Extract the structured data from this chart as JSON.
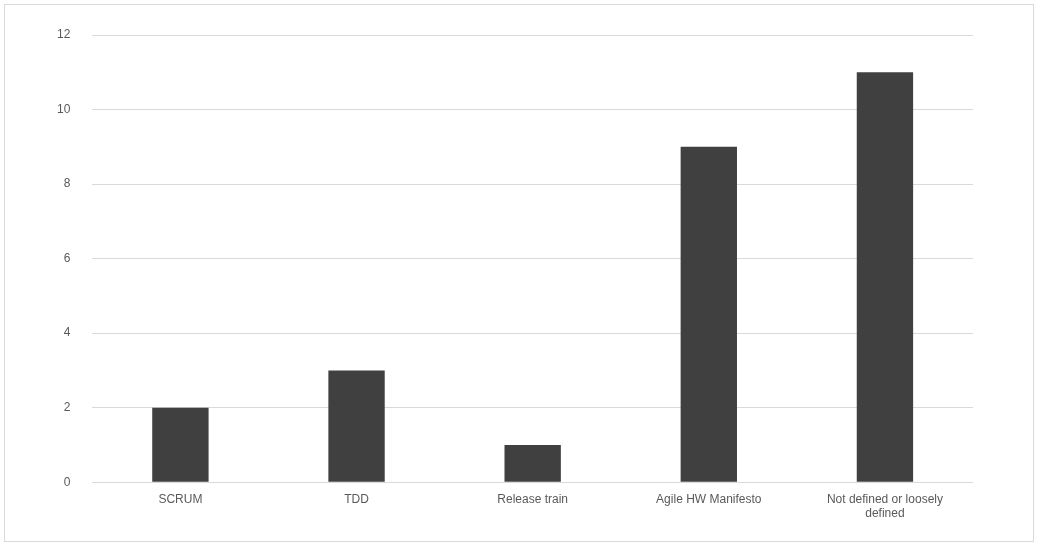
{
  "chart_data": {
    "type": "bar",
    "categories": [
      "SCRUM",
      "TDD",
      "Release train",
      "Agile HW Manifesto",
      "Not defined or loosely defined"
    ],
    "values": [
      2,
      3,
      1,
      9,
      11
    ],
    "color": "#404040",
    "ylim": [
      0,
      12
    ],
    "yticks": [
      0,
      2,
      4,
      6,
      8,
      10,
      12
    ],
    "grid": "y",
    "legend": false
  }
}
